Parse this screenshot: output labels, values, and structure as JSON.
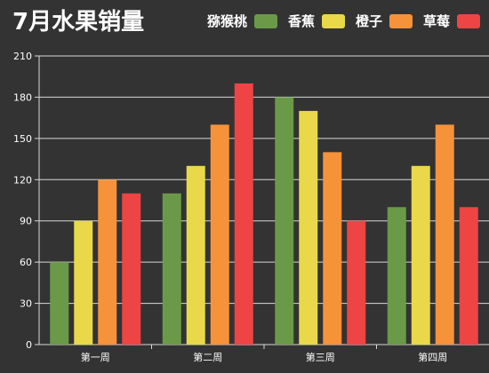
{
  "chart_data": {
    "type": "bar",
    "title": "7月水果销量",
    "xlabel": "",
    "ylabel": "",
    "categories": [
      "第一周",
      "第二周",
      "第三周",
      "第四周"
    ],
    "ylim": [
      0,
      210
    ],
    "yticks": [
      0,
      30,
      60,
      90,
      120,
      150,
      180,
      210
    ],
    "grid": true,
    "legend_position": "top-right",
    "series": [
      {
        "name": "猕猴桃",
        "color": "#6a9a48",
        "values": [
          60,
          110,
          180,
          100
        ]
      },
      {
        "name": "香蕉",
        "color": "#e8d84a",
        "values": [
          90,
          130,
          170,
          130
        ]
      },
      {
        "name": "橙子",
        "color": "#f5923a",
        "values": [
          120,
          160,
          140,
          160
        ]
      },
      {
        "name": "草莓",
        "color": "#ee4444",
        "values": [
          110,
          190,
          90,
          100
        ]
      }
    ]
  }
}
